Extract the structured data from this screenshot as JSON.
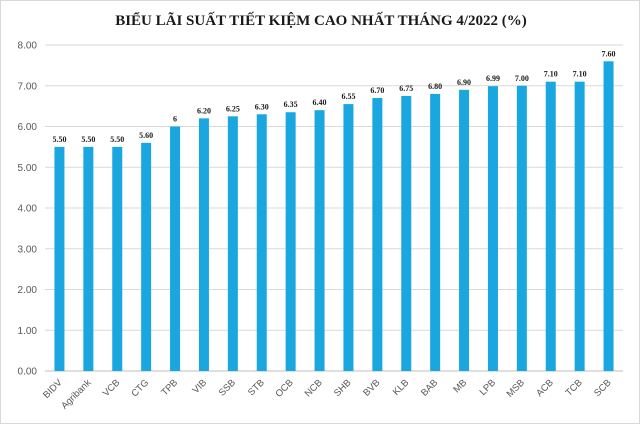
{
  "chart_data": {
    "type": "bar",
    "title": "BIỂU LÃI SUẤT TIẾT KIỆM CAO NHẤT THÁNG 4/2022 (%)",
    "xlabel": "",
    "ylabel": "",
    "ylim": [
      0,
      8
    ],
    "y_ticks": [
      "0.00",
      "1.00",
      "2.00",
      "3.00",
      "4.00",
      "5.00",
      "6.00",
      "7.00",
      "8.00"
    ],
    "grid": true,
    "legend": "none",
    "bar_color": "#1aa7e0",
    "categories": [
      "BIDV",
      "Agribank",
      "VCB",
      "CTG",
      "TPB",
      "VIB",
      "SSB",
      "STB",
      "OCB",
      "NCB",
      "SHB",
      "BVB",
      "KLB",
      "BAB",
      "MB",
      "LPB",
      "MSB",
      "ACB",
      "TCB",
      "SCB"
    ],
    "values": [
      5.5,
      5.5,
      5.5,
      5.6,
      6,
      6.2,
      6.25,
      6.3,
      6.35,
      6.4,
      6.55,
      6.7,
      6.75,
      6.8,
      6.9,
      6.99,
      7.0,
      7.1,
      7.1,
      7.6
    ],
    "data_labels": [
      "5.50",
      "5.50",
      "5.50",
      "5.60",
      "6",
      "6.20",
      "6.25",
      "6.30",
      "6.35",
      "6.40",
      "6.55",
      "6.70",
      "6.75",
      "6.80",
      "6.90",
      "6.99",
      "7.00",
      "7.10",
      "7.10",
      "7.60"
    ]
  }
}
